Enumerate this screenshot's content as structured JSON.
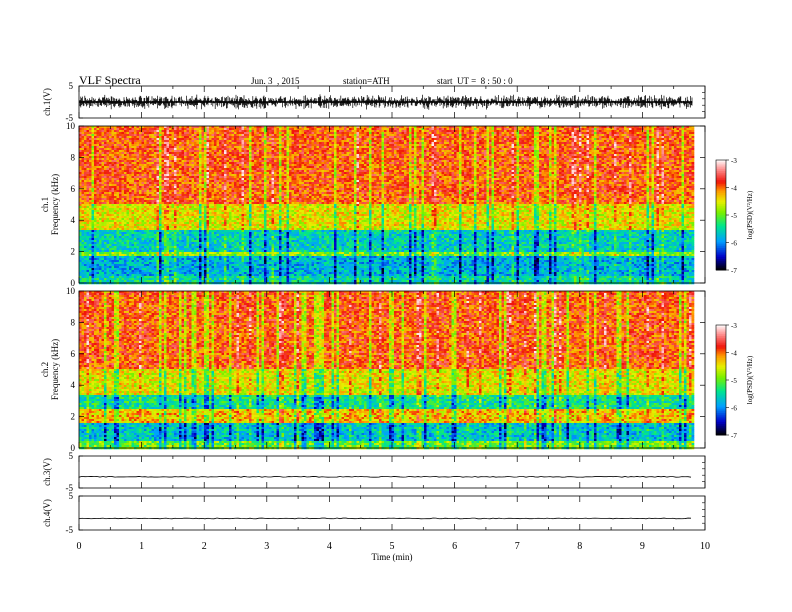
{
  "header": {
    "title": "VLF Spectra",
    "date": "Jun. 3  , 2015",
    "station": "station=ATH",
    "start": "start  UT =  8 : 50 : 0"
  },
  "chart_data": {
    "type": "heatmap",
    "xlabel": "Time (min)",
    "xlim": [
      0,
      10
    ],
    "xticks": [
      "0",
      "1",
      "2",
      "3",
      "4",
      "5",
      "6",
      "7",
      "8",
      "9",
      "10"
    ],
    "data_end_min": 9.8,
    "panels": [
      {
        "id": "ch1_wave",
        "type": "line",
        "ylabel": "ch.1(V)",
        "ylim": [
          -5,
          5
        ],
        "yticks": [
          "5",
          "-5"
        ],
        "waveform": "noisy",
        "approx_peak_abs": 2.5
      },
      {
        "id": "ch1_spec",
        "type": "heatmap",
        "ylabel_top": "ch.1",
        "ylabel": "Frequency (kHz)",
        "ylim": [
          0,
          10
        ],
        "yticks": [
          "0",
          "2",
          "4",
          "6",
          "8",
          "10"
        ],
        "colorbar": {
          "label": "log(PSD)(V²/Hz)",
          "range": [
            -7,
            -3
          ],
          "ticks": [
            "-3",
            "-4",
            "-5",
            "-6",
            "-7"
          ]
        },
        "bands_khz_log_psd": [
          {
            "from": 0,
            "to": 0.5,
            "level": -5.5
          },
          {
            "from": 0.5,
            "to": 1.7,
            "level": -5.8
          },
          {
            "from": 1.7,
            "to": 2.0,
            "level": -4.9
          },
          {
            "from": 2.0,
            "to": 3.4,
            "level": -5.6
          },
          {
            "from": 3.4,
            "to": 5.0,
            "level": -4.5
          },
          {
            "from": 5.0,
            "to": 10,
            "level": -3.9
          }
        ]
      },
      {
        "id": "ch2_spec",
        "type": "heatmap",
        "ylabel_top": "ch.2",
        "ylabel": "Frequency (kHz)",
        "ylim": [
          0,
          10
        ],
        "yticks": [
          "0",
          "2",
          "4",
          "6",
          "8",
          "10"
        ],
        "colorbar": {
          "label": "log(PSD)(V²/Hz)",
          "range": [
            -7,
            -3
          ],
          "ticks": [
            "-3",
            "-4",
            "-5",
            "-6",
            "-7"
          ]
        },
        "bands_khz_log_psd": [
          {
            "from": 0,
            "to": 0.4,
            "level": -5.0
          },
          {
            "from": 0.4,
            "to": 1.6,
            "level": -5.7
          },
          {
            "from": 1.6,
            "to": 2.5,
            "level": -4.3
          },
          {
            "from": 2.5,
            "to": 3.4,
            "level": -5.4
          },
          {
            "from": 3.4,
            "to": 5.0,
            "level": -4.5
          },
          {
            "from": 5.0,
            "to": 10,
            "level": -3.9
          }
        ]
      },
      {
        "id": "ch3_wave",
        "type": "line",
        "ylabel": "ch.3(V)",
        "ylim": [
          -5,
          5
        ],
        "yticks": [
          "5",
          "-5"
        ],
        "waveform": "flat",
        "level_v": -1.5
      },
      {
        "id": "ch4_wave",
        "type": "line",
        "ylabel": "ch.4(V)",
        "ylim": [
          -5,
          5
        ],
        "yticks": [
          "5",
          "-5"
        ],
        "waveform": "flat",
        "level_v": -1.6
      }
    ]
  }
}
